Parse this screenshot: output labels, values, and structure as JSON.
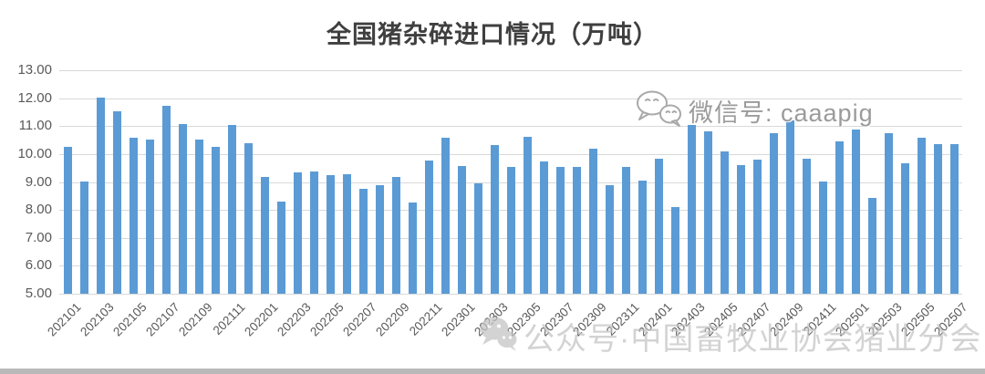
{
  "title": "全国猪杂碎进口情况（万吨）",
  "watermark_mid": {
    "icon": "wechat-icon",
    "text": "微信号: caaapig"
  },
  "watermark_bottom": {
    "icon": "wechat-icon",
    "text": "公众号·中国畜牧业协会猪业分会"
  },
  "chart_data": {
    "type": "bar",
    "title": "全国猪杂碎进口情况（万吨）",
    "categories": [
      "202101",
      "202102",
      "202103",
      "202104",
      "202105",
      "202106",
      "202107",
      "202108",
      "202109",
      "202110",
      "202111",
      "202112",
      "202201",
      "202202",
      "202203",
      "202204",
      "202205",
      "202206",
      "202207",
      "202208",
      "202209",
      "202210",
      "202211",
      "202212",
      "202301",
      "202302",
      "202303",
      "202304",
      "202305",
      "202306",
      "202307",
      "202308",
      "202309",
      "202310",
      "202311",
      "202312",
      "202401",
      "202402",
      "202403",
      "202404",
      "202405",
      "202406",
      "202407",
      "202408",
      "202409",
      "202410",
      "202411",
      "202412",
      "202501",
      "202502",
      "202503",
      "202504",
      "202505",
      "202506",
      "202507"
    ],
    "values": [
      10.27,
      9.02,
      12.02,
      11.52,
      10.6,
      10.53,
      11.74,
      11.08,
      10.53,
      10.27,
      11.03,
      10.38,
      9.19,
      8.3,
      9.33,
      9.38,
      9.23,
      9.27,
      8.77,
      8.89,
      9.19,
      8.27,
      9.76,
      10.6,
      9.57,
      8.94,
      10.32,
      9.54,
      10.62,
      9.75,
      9.55,
      9.55,
      10.18,
      8.88,
      9.55,
      9.05,
      9.82,
      8.09,
      11.05,
      10.81,
      10.09,
      9.6,
      9.8,
      10.75,
      11.2,
      9.84,
      9.01,
      10.45,
      10.89,
      8.42,
      10.75,
      9.68,
      10.59,
      10.35,
      10.36
    ],
    "xlabel": "",
    "ylabel": "",
    "ylim": [
      5,
      13
    ],
    "ytick_step": 1,
    "y_tick_labels": [
      "13.00",
      "12.00",
      "11.00",
      "10.00",
      "9.00",
      "8.00",
      "7.00",
      "6.00",
      "5.00"
    ],
    "x_tick_labels": [
      "202101",
      "202103",
      "202105",
      "202107",
      "202109",
      "202111",
      "202201",
      "202203",
      "202205",
      "202207",
      "202209",
      "202211",
      "202301",
      "202303",
      "202305",
      "202307",
      "202309",
      "202311",
      "202401",
      "202403",
      "202405",
      "202407",
      "202409",
      "202411",
      "202501",
      "202503",
      "202505",
      "202507"
    ],
    "xtick_every": 2,
    "grid": true,
    "legend_position": "none",
    "bar_color": "#5b9bd5",
    "gridline_color": "#d9d9d9",
    "tick_label_color": "#595959"
  }
}
